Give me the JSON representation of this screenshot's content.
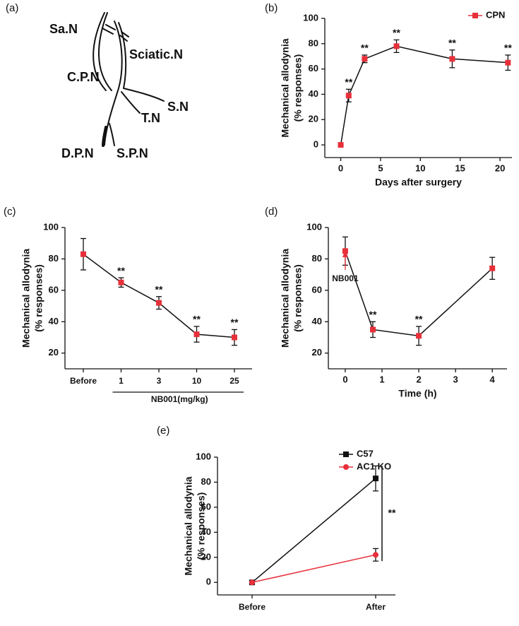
{
  "diagram": {
    "panel_label": "(a)",
    "labels": [
      "Sa.N",
      "Sciatic.N",
      "C.P.N",
      "S.N",
      "T.N",
      "D.P.N",
      "S.P.N"
    ]
  },
  "chart_data": [
    {
      "type": "line",
      "panel_label": "(b)",
      "y_label": "Mechanical allodynia",
      "y_sublabel": "(% responses)",
      "x_label": "Days after surgery",
      "x": [
        0,
        1,
        3,
        7,
        14,
        21
      ],
      "xlim": [
        -2,
        21.5
      ],
      "xticks": [
        0,
        5,
        10,
        15,
        20
      ],
      "ylim": [
        -10,
        100
      ],
      "yticks": [
        0,
        20,
        40,
        60,
        80,
        100
      ],
      "legend": "upper right",
      "series": [
        {
          "name": "CPN",
          "color": "#e8303a",
          "marker": "square",
          "values": [
            0,
            39,
            68,
            78,
            68,
            65
          ],
          "errors": [
            0,
            5,
            3,
            5,
            7,
            6
          ],
          "significance": [
            null,
            "**",
            "**",
            "**",
            "**",
            "**"
          ]
        }
      ]
    },
    {
      "type": "line",
      "panel_label": "(c)",
      "y_label": "Mechanical allodynia",
      "y_sublabel": "(% responses)",
      "x_group_label": "NB001(mg/kg)",
      "categories": [
        "Before",
        "1",
        "3",
        "10",
        "25"
      ],
      "ylim": [
        10,
        100
      ],
      "yticks": [
        20,
        40,
        60,
        80,
        100
      ],
      "series": [
        {
          "color": "#e8303a",
          "marker": "square",
          "values": [
            83,
            65,
            52,
            32,
            30
          ],
          "errors": [
            10,
            3,
            4,
            5,
            5
          ],
          "significance": [
            null,
            "**",
            "**",
            "**",
            "**"
          ]
        }
      ]
    },
    {
      "type": "line",
      "panel_label": "(d)",
      "y_label": "Mechanical allodynia",
      "y_sublabel": "(% responses)",
      "x_label": "Time  (h)",
      "x": [
        0,
        0.75,
        2,
        4
      ],
      "xlim": [
        -0.46,
        4.4
      ],
      "xticks": [
        0,
        1,
        2,
        3,
        4
      ],
      "ylim": [
        10,
        100
      ],
      "yticks": [
        20,
        40,
        60,
        80,
        100
      ],
      "annotation": {
        "text": "NB001",
        "x": 0
      },
      "series": [
        {
          "color": "#e8303a",
          "marker": "square",
          "values": [
            85,
            35,
            31,
            74
          ],
          "errors": [
            9,
            5,
            6,
            7
          ],
          "significance": [
            null,
            "**",
            "**",
            null
          ]
        }
      ]
    },
    {
      "type": "line",
      "panel_label": "(e)",
      "y_label": "Mechanical allodynia",
      "y_sublabel": "(% responses)",
      "categories": [
        "Before",
        "After"
      ],
      "ylim": [
        -10,
        100
      ],
      "yticks": [
        0,
        20,
        40,
        60,
        80,
        100
      ],
      "legend": "upper right",
      "comparison": "**",
      "series": [
        {
          "name": "C57",
          "color": "#111111",
          "marker": "square",
          "values": [
            0,
            83
          ],
          "errors": [
            0,
            10
          ]
        },
        {
          "name": "AC1 KO",
          "color": "#e8303a",
          "marker": "circle",
          "values": [
            0,
            22
          ],
          "errors": [
            0,
            5
          ]
        }
      ]
    }
  ]
}
